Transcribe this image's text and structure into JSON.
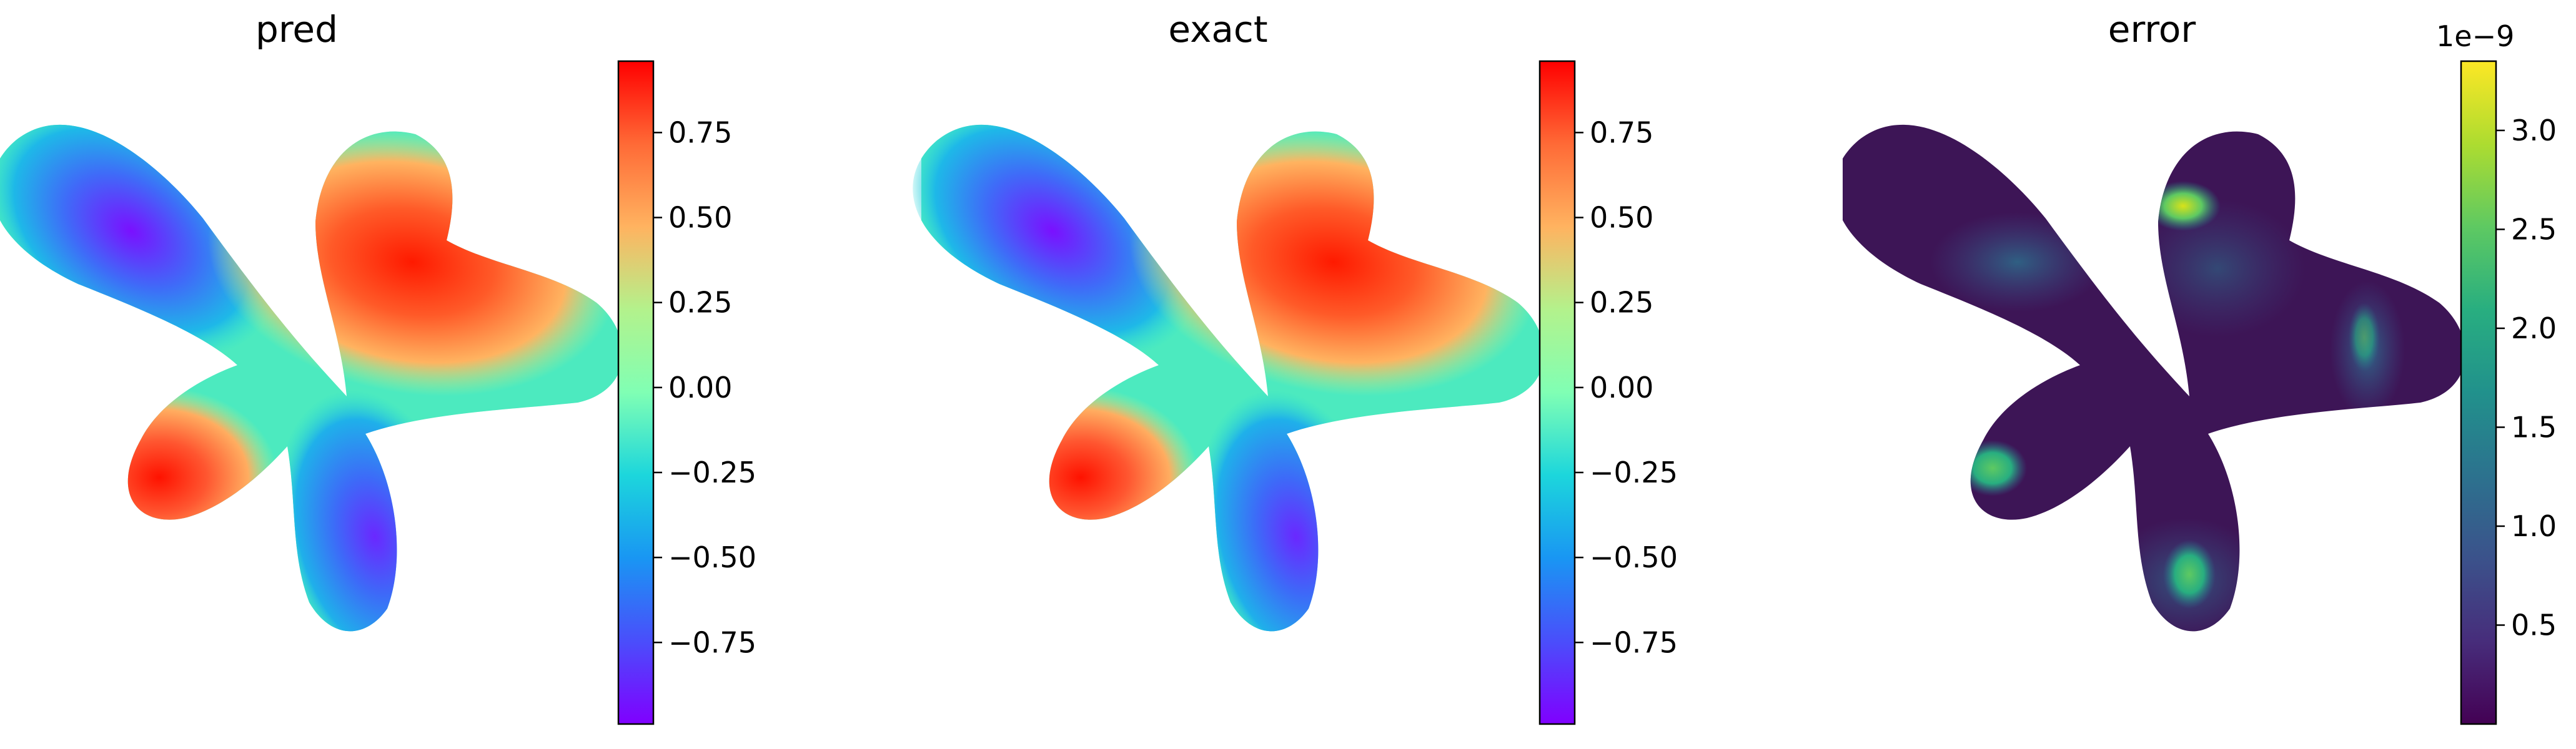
{
  "chart_data": [
    {
      "type": "heatmap",
      "title": "pred",
      "colormap": "rainbow",
      "shape": "three-lobed petal domain",
      "field_range": [
        -1.0,
        1.0
      ],
      "field_description": "approximately -1 at upper-left lobe and lower-right tip, approximately +1 at upper-right lobe and lower-left lobe",
      "colorbar": {
        "ticks": [
          0.75,
          0.5,
          0.25,
          0.0,
          -0.25,
          -0.5,
          -0.75
        ],
        "tick_labels": [
          "0.75",
          "0.50",
          "0.25",
          "0.00",
          "−0.25",
          "−0.50",
          "−0.75"
        ],
        "range": [
          -0.99,
          0.96
        ],
        "offset_text": ""
      },
      "xlabel": "",
      "ylabel": "",
      "grid": false
    },
    {
      "type": "heatmap",
      "title": "exact",
      "colormap": "rainbow",
      "shape": "three-lobed petal domain",
      "field_range": [
        -1.0,
        1.0
      ],
      "field_description": "approximately -1 at upper-left lobe and lower-right tip, approximately +1 at upper-right lobe and lower-left lobe",
      "colorbar": {
        "ticks": [
          0.75,
          0.5,
          0.25,
          0.0,
          -0.25,
          -0.5,
          -0.75
        ],
        "tick_labels": [
          "0.75",
          "0.50",
          "0.25",
          "0.00",
          "−0.25",
          "−0.50",
          "−0.75"
        ],
        "range": [
          -0.99,
          0.96
        ],
        "offset_text": ""
      },
      "xlabel": "",
      "ylabel": "",
      "grid": false
    },
    {
      "type": "heatmap",
      "title": "error",
      "colormap": "viridis",
      "shape": "three-lobed petal domain",
      "field_range": [
        0.0,
        3.35e-09
      ],
      "field_description": "near zero almost everywhere; small hot spots at boundary (top of right lobe, lower-left tip, bottom lobe)",
      "colorbar": {
        "ticks": [
          3.0,
          2.5,
          2.0,
          1.5,
          1.0,
          0.5
        ],
        "tick_labels": [
          "3.0",
          "2.5",
          "2.0",
          "1.5",
          "1.0",
          "0.5"
        ],
        "range": [
          0.0,
          3.35
        ],
        "offset_text": "1e−9"
      },
      "xlabel": "",
      "ylabel": "",
      "grid": false
    }
  ]
}
